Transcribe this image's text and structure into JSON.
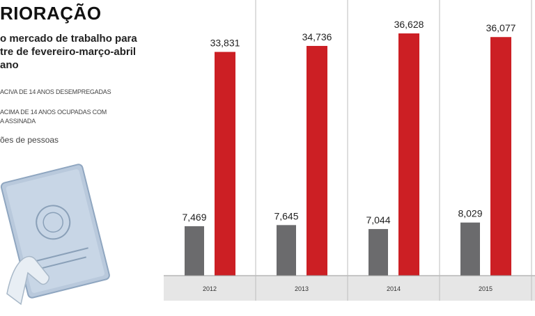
{
  "header": {
    "title": "RIORAÇÃO",
    "subtitle": "o mercado de trabalho para\ntre de fevereiro-março-abril\nano",
    "legend": [
      "ACIVA DE 14 ANOS DESEMPREGADAS",
      "ACIMA DE 14 ANOS OCUPADAS COM\nA ASSINADA"
    ],
    "unit_note": "ões de pessoas"
  },
  "colors": {
    "unemployed": "#6b6b6d",
    "employed_formal": "#cc1f24",
    "axis_band": "#e6e6e6",
    "divider": "#bdbdbd",
    "booklet": "#b9c9dc"
  },
  "chart_data": {
    "type": "bar",
    "categories": [
      "2012",
      "2013",
      "2014",
      "2015"
    ],
    "series": [
      {
        "values": [
          7.469,
          7.645,
          7.044,
          8.029
        ],
        "labels": [
          "7,469",
          "7,645",
          "7,044",
          "8,029"
        ]
      },
      {
        "values": [
          33.831,
          34.736,
          36.628,
          36.077
        ],
        "labels": [
          "33,831",
          "34,736",
          "36,628",
          "36,077"
        ]
      }
    ],
    "ylim": [
      0,
      40
    ],
    "grid": false,
    "title": "",
    "xlabel": "",
    "ylabel": ""
  }
}
